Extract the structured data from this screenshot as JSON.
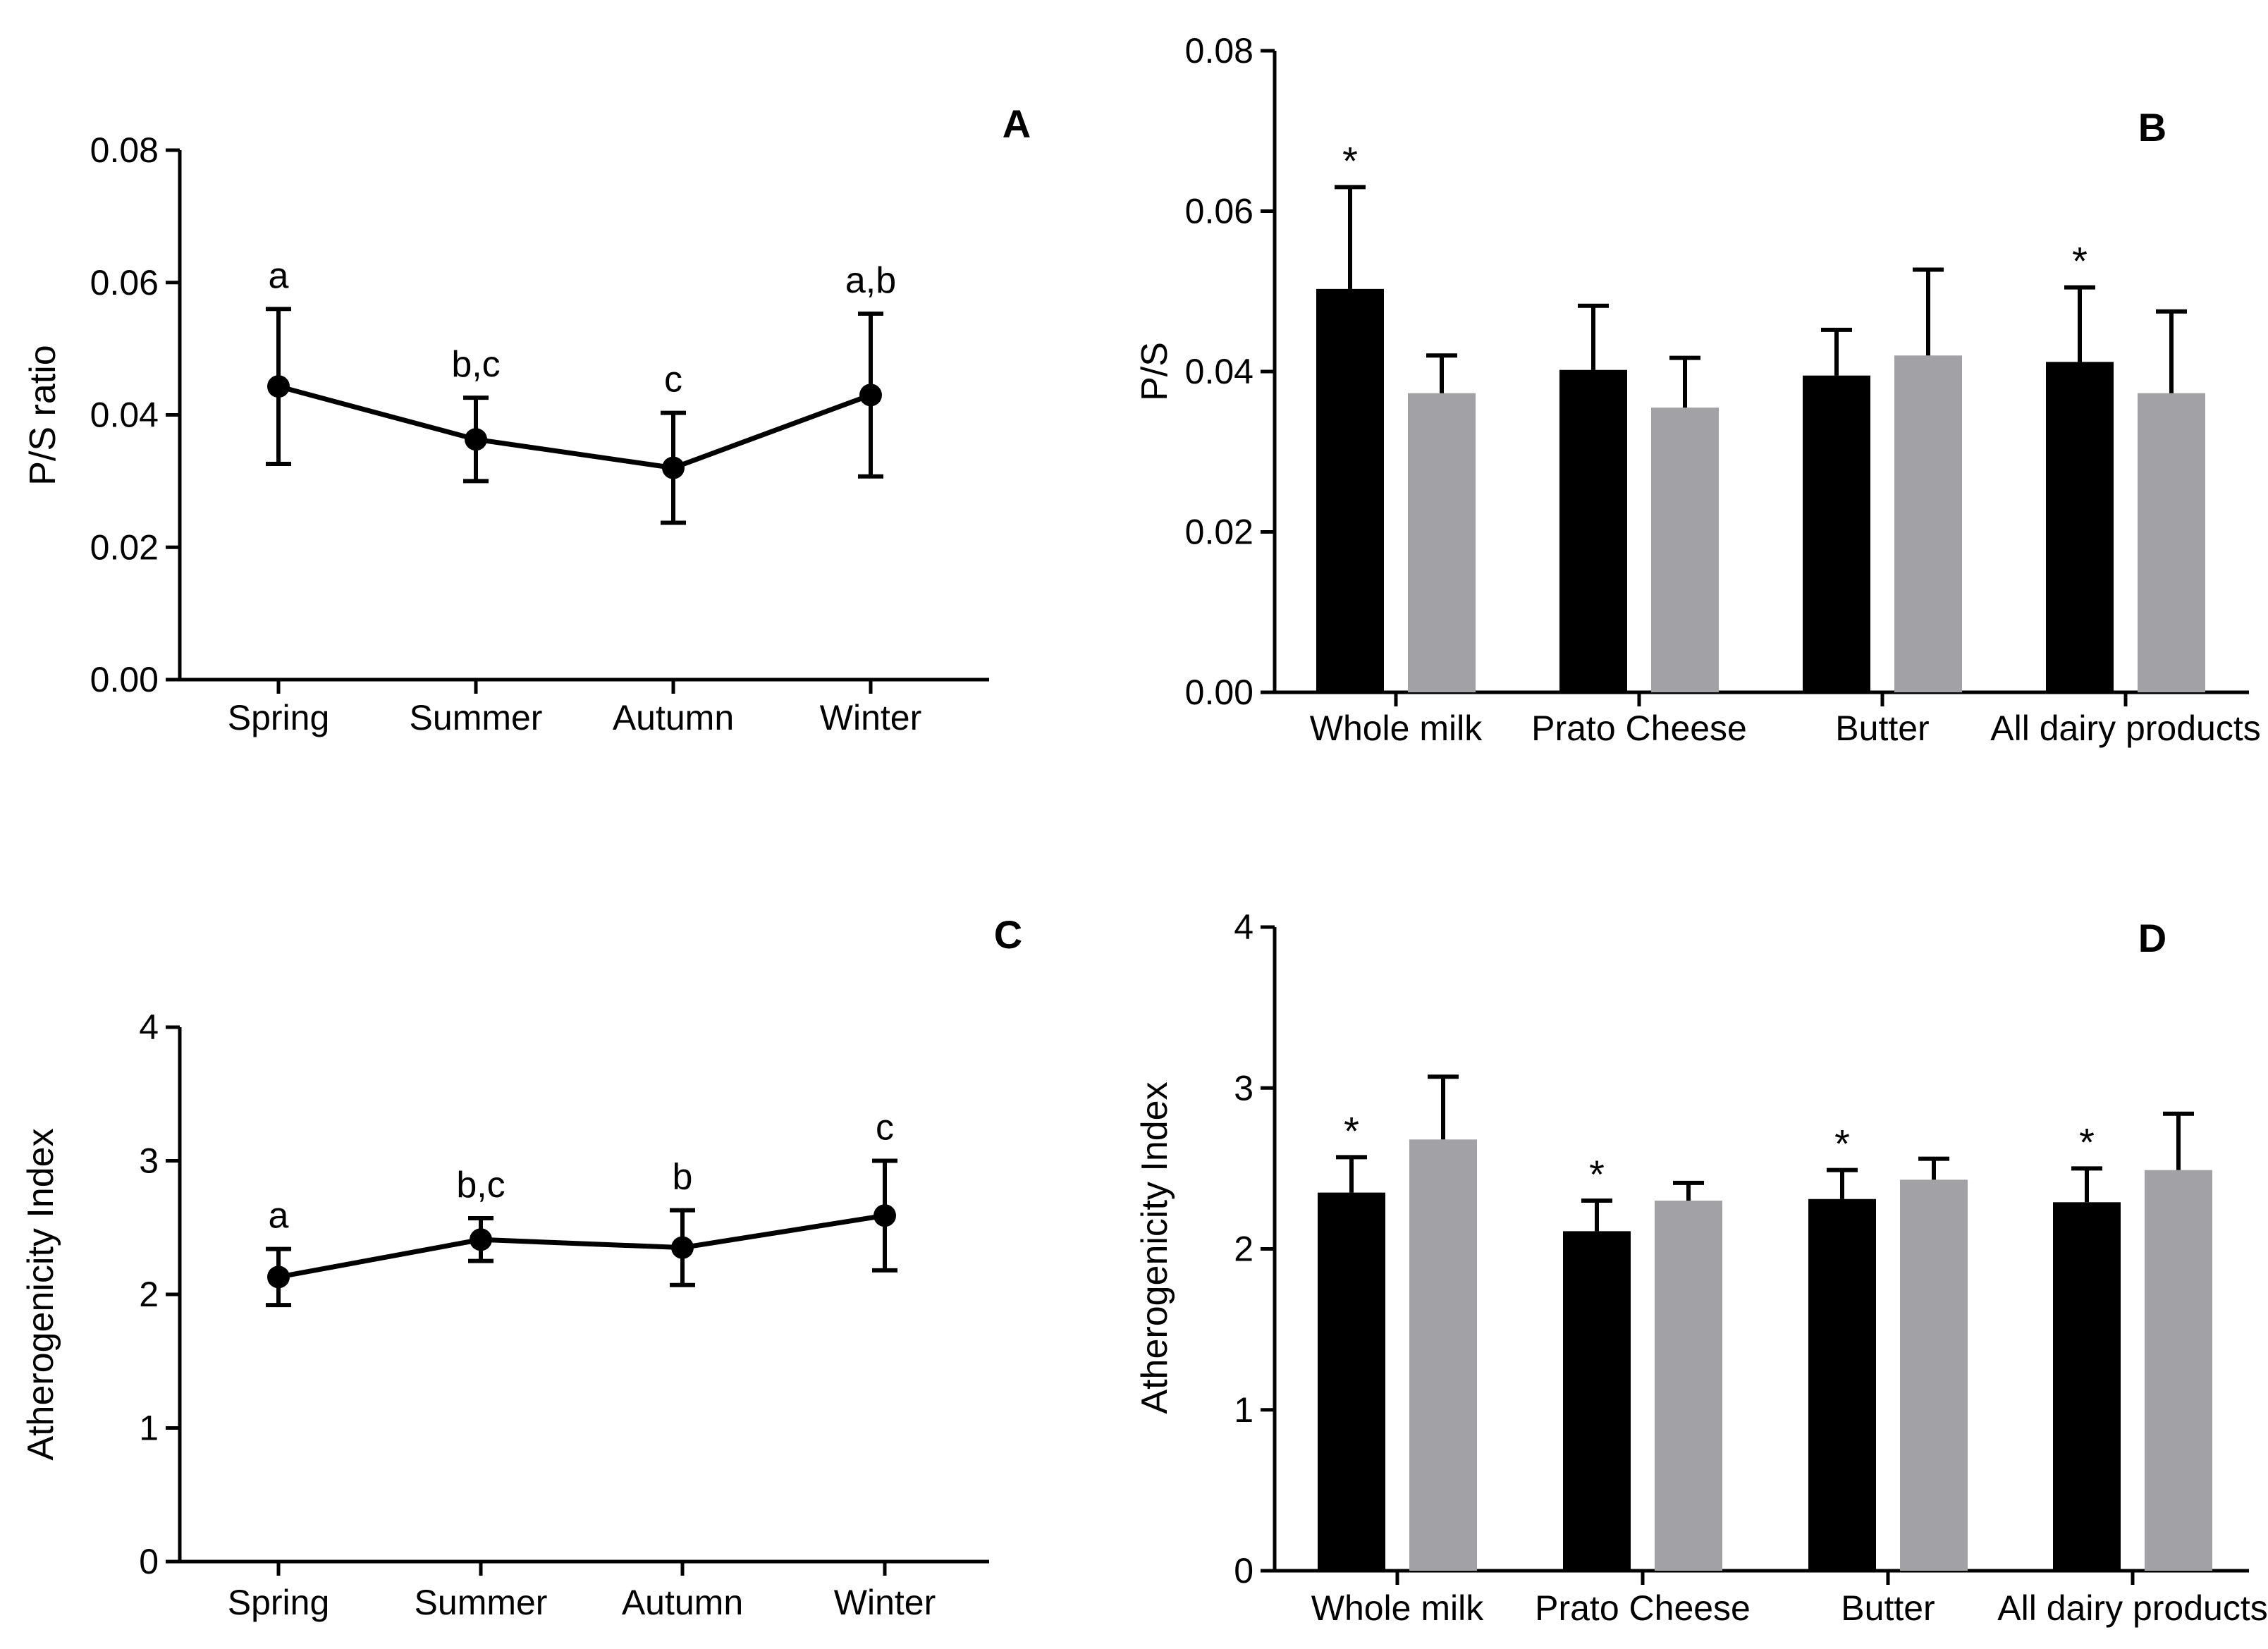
{
  "colors": {
    "axis": "#000000",
    "dark_bar": "#000000",
    "light_bar": "#a2a2a6",
    "line": "#000000"
  },
  "chart_data": [
    {
      "id": "A",
      "type": "line",
      "panel_label": "A",
      "ylabel": "P/S ratio",
      "xlabel": "",
      "ylim": [
        0,
        0.08
      ],
      "yticks": [
        "0.00",
        "0.02",
        "0.04",
        "0.06",
        "0.08"
      ],
      "ytick_values": [
        0,
        0.02,
        0.04,
        0.06,
        0.08
      ],
      "categories": [
        "Spring",
        "Summer",
        "Autumn",
        "Winter"
      ],
      "values": [
        0.0443,
        0.0363,
        0.032,
        0.043
      ],
      "errors": [
        0.0117,
        0.0063,
        0.0083,
        0.0123
      ],
      "annotations": [
        "a",
        "b,c",
        "c",
        "a,b"
      ]
    },
    {
      "id": "B",
      "type": "bar",
      "panel_label": "B",
      "ylabel": "P/S",
      "xlabel": "",
      "ylim": [
        0,
        0.08
      ],
      "yticks": [
        "0.00",
        "0.02",
        "0.04",
        "0.06",
        "0.08"
      ],
      "ytick_values": [
        0,
        0.02,
        0.04,
        0.06,
        0.08
      ],
      "categories": [
        "Whole milk",
        "Prato Cheese",
        "Butter",
        "All dairy products"
      ],
      "series": [
        {
          "name": "dark",
          "values": [
            0.0503,
            0.0402,
            0.0395,
            0.0412
          ],
          "errors": [
            0.0127,
            0.008,
            0.0057,
            0.0093
          ]
        },
        {
          "name": "light",
          "values": [
            0.0373,
            0.0355,
            0.042,
            0.0373
          ],
          "errors": [
            0.0047,
            0.0062,
            0.0107,
            0.0102
          ]
        }
      ],
      "markers": [
        "*",
        "",
        "",
        "*"
      ]
    },
    {
      "id": "C",
      "type": "line",
      "panel_label": "C",
      "ylabel": "Atherogenicity Index",
      "xlabel": "",
      "ylim": [
        0,
        4
      ],
      "yticks": [
        "0",
        "1",
        "2",
        "3",
        "4"
      ],
      "ytick_values": [
        0,
        1,
        2,
        3,
        4
      ],
      "categories": [
        "Spring",
        "Summer",
        "Autumn",
        "Winter"
      ],
      "values": [
        2.13,
        2.41,
        2.35,
        2.59
      ],
      "errors": [
        0.21,
        0.16,
        0.28,
        0.41
      ],
      "annotations": [
        "a",
        "b,c",
        "b",
        "c"
      ]
    },
    {
      "id": "D",
      "type": "bar",
      "panel_label": "D",
      "ylabel": "Atherogenicity Index",
      "xlabel": "",
      "ylim": [
        0,
        4
      ],
      "yticks": [
        "0",
        "1",
        "2",
        "3",
        "4"
      ],
      "ytick_values": [
        0,
        1,
        2,
        3,
        4
      ],
      "categories": [
        "Whole milk",
        "Prato Cheese",
        "Butter",
        "All dairy products"
      ],
      "series": [
        {
          "name": "dark",
          "values": [
            2.35,
            2.11,
            2.31,
            2.29
          ],
          "errors": [
            0.22,
            0.19,
            0.18,
            0.21
          ]
        },
        {
          "name": "light",
          "values": [
            2.68,
            2.3,
            2.43,
            2.49
          ],
          "errors": [
            0.39,
            0.11,
            0.13,
            0.35
          ]
        }
      ],
      "markers": [
        "*",
        "*",
        "*",
        "*"
      ]
    }
  ]
}
